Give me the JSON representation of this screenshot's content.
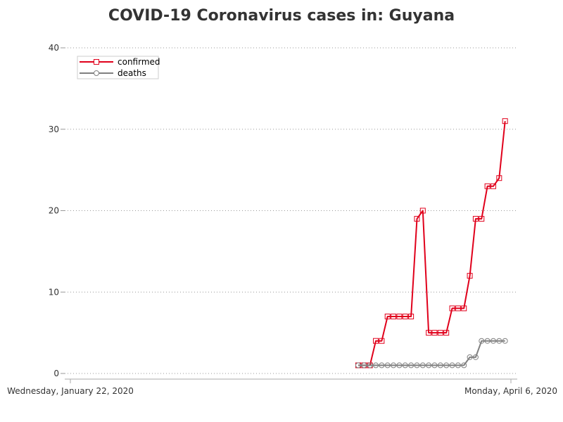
{
  "chart_data": {
    "type": "line",
    "title": "COVID-19 Coronavirus cases in: Guyana",
    "xlabel": "",
    "ylabel": "",
    "x_start": "2020-01-22",
    "x_end": "2020-04-06",
    "x_tick_labels": [
      "Wednesday, January 22, 2020",
      "Monday, April 6, 2020"
    ],
    "ylim": [
      0,
      40
    ],
    "y_ticks": [
      0,
      10,
      20,
      30,
      40
    ],
    "grid": true,
    "legend_position": "top-left",
    "x": [
      "2020-03-11",
      "2020-03-12",
      "2020-03-13",
      "2020-03-14",
      "2020-03-15",
      "2020-03-16",
      "2020-03-17",
      "2020-03-18",
      "2020-03-19",
      "2020-03-20",
      "2020-03-21",
      "2020-03-22",
      "2020-03-23",
      "2020-03-24",
      "2020-03-25",
      "2020-03-26",
      "2020-03-27",
      "2020-03-28",
      "2020-03-29",
      "2020-03-30",
      "2020-03-31",
      "2020-04-01",
      "2020-04-02",
      "2020-04-03",
      "2020-04-04",
      "2020-04-05",
      "2020-04-06"
    ],
    "series": [
      {
        "name": "confirmed",
        "color": "#e0001b",
        "marker": "square",
        "values": [
          1,
          1,
          1,
          4,
          4,
          7,
          7,
          7,
          7,
          7,
          19,
          20,
          5,
          5,
          5,
          5,
          8,
          8,
          8,
          12,
          19,
          19,
          23,
          23,
          24,
          31,
          null
        ]
      },
      {
        "name": "deaths",
        "color": "#808080",
        "marker": "circle",
        "values": [
          1,
          1,
          1,
          1,
          1,
          1,
          1,
          1,
          1,
          1,
          1,
          1,
          1,
          1,
          1,
          1,
          1,
          1,
          1,
          2,
          2,
          4,
          4,
          4,
          4,
          4,
          null
        ]
      }
    ]
  }
}
